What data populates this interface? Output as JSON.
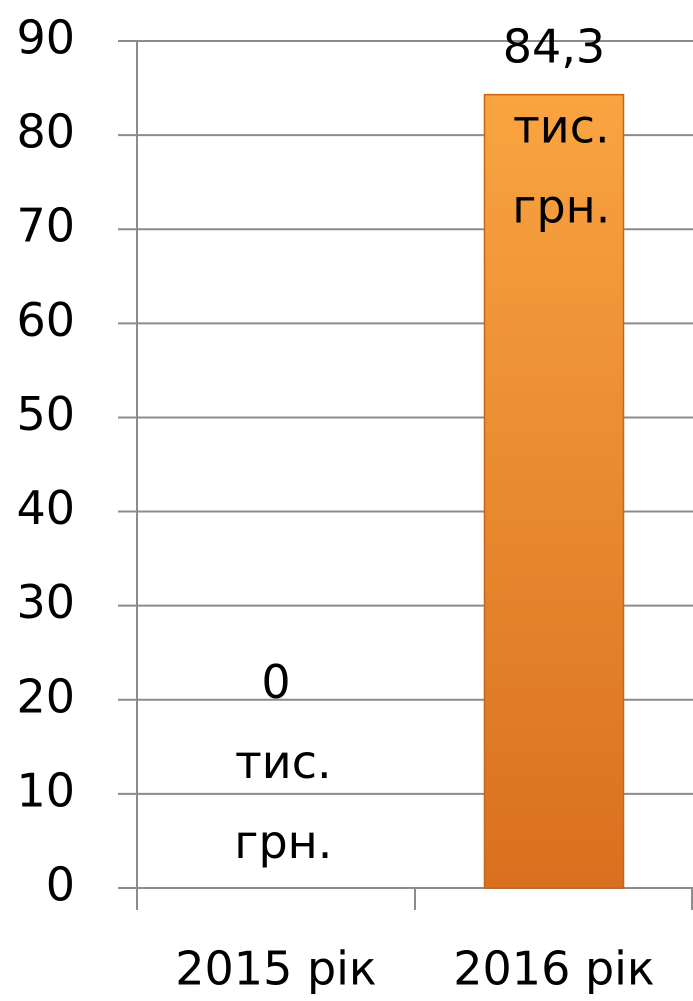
{
  "chart_data": {
    "type": "bar",
    "categories": [
      "2015 рік",
      "2016 рік"
    ],
    "values": [
      0,
      84.3
    ],
    "value_labels": [
      "0 тис. грн.",
      "84,3 тис. грн."
    ],
    "color": "#f28c28",
    "ylim": [
      0,
      90
    ],
    "yticks": [
      0,
      10,
      20,
      30,
      40,
      50,
      60,
      70,
      80,
      90
    ],
    "grid": true
  }
}
